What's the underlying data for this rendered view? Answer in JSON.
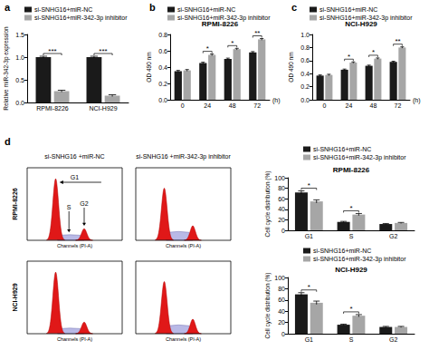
{
  "chart_data": [
    {
      "panel": "a",
      "type": "bar",
      "categories": [
        "RPMI-8226",
        "NCI-H929"
      ],
      "ylabel": "Relative miR-342-3p expression",
      "ylim": [
        0,
        1.5
      ],
      "yticks": [
        {
          "value": 0,
          "label": "0.0"
        },
        {
          "value": 0.5,
          "label": "0.5"
        },
        {
          "value": 1,
          "label": "1.0"
        },
        {
          "value": 1.5,
          "label": "1.5"
        }
      ],
      "series": [
        {
          "name": "si-SNHG16+miR-NC",
          "color": "#1a1a1a",
          "values": [
            1.0,
            1.0
          ],
          "errors": [
            0.02,
            0.02
          ]
        },
        {
          "name": "si-SNHG16+miR-342-3p inhibitor",
          "color": "#a6a6a6",
          "values": [
            0.25,
            0.15
          ],
          "errors": [
            0.02,
            0.02
          ]
        }
      ],
      "significance": [
        "***",
        "***"
      ],
      "legend": "top",
      "grid": false
    },
    {
      "panel": "b",
      "type": "bar",
      "title": "RPMI-8226",
      "categories": [
        "0",
        "24",
        "48",
        "72"
      ],
      "xlabel": "(h)",
      "ylabel": "OD 490 nm",
      "ylim": [
        0,
        0.8
      ],
      "yticks": [
        {
          "value": 0,
          "label": "0.0"
        },
        {
          "value": 0.2,
          "label": "0.2"
        },
        {
          "value": 0.4,
          "label": "0.4"
        },
        {
          "value": 0.6,
          "label": "0.6"
        },
        {
          "value": 0.8,
          "label": "0.8"
        }
      ],
      "series": [
        {
          "name": "si-SNHG16+miR-NC",
          "color": "#1a1a1a",
          "values": [
            0.35,
            0.45,
            0.5,
            0.58
          ],
          "errors": [
            0.01,
            0.01,
            0.01,
            0.01
          ]
        },
        {
          "name": "si-SNHG16+miR-342-3p inhibitor",
          "color": "#a6a6a6",
          "values": [
            0.36,
            0.55,
            0.62,
            0.74
          ],
          "errors": [
            0.01,
            0.01,
            0.01,
            0.01
          ]
        }
      ],
      "significance": [
        null,
        "*",
        "*",
        "**"
      ],
      "legend": "top",
      "grid": false
    },
    {
      "panel": "c",
      "type": "bar",
      "title": "NCI-H929",
      "categories": [
        "0",
        "24",
        "48",
        "72"
      ],
      "xlabel": "(h)",
      "ylabel": "OD 490 nm",
      "ylim": [
        0,
        1.0
      ],
      "yticks": [
        {
          "value": 0,
          "label": "0.0"
        },
        {
          "value": 0.2,
          "label": "0.2"
        },
        {
          "value": 0.4,
          "label": "0.4"
        },
        {
          "value": 0.6,
          "label": "0.6"
        },
        {
          "value": 0.8,
          "label": "0.8"
        },
        {
          "value": 1.0,
          "label": "1.0"
        }
      ],
      "series": [
        {
          "name": "si-SNHG16+miR-NC",
          "color": "#1a1a1a",
          "values": [
            0.37,
            0.46,
            0.52,
            0.58
          ],
          "errors": [
            0.01,
            0.01,
            0.01,
            0.01
          ]
        },
        {
          "name": "si-SNHG16+miR-342-3p inhibitor",
          "color": "#a6a6a6",
          "values": [
            0.38,
            0.57,
            0.63,
            0.8
          ],
          "errors": [
            0.01,
            0.01,
            0.01,
            0.01
          ]
        }
      ],
      "significance": [
        null,
        "*",
        "*",
        "**"
      ],
      "legend": "top",
      "grid": false
    },
    {
      "type": "bar",
      "title": "RPMI-8226",
      "categories": [
        "G1",
        "S",
        "G2"
      ],
      "ylabel": "Cell cycle distribution (%)",
      "ylim": [
        0,
        100
      ],
      "yticks": [
        0,
        20,
        40,
        60,
        80,
        100
      ],
      "series": [
        {
          "name": "si-SNHG16+miR-NC",
          "color": "#1a1a1a",
          "values": [
            72,
            16,
            12
          ],
          "errors": [
            3,
            1,
            1
          ]
        },
        {
          "name": "si-SNHG16+miR-342-3p inhibitor",
          "color": "#a6a6a6",
          "values": [
            55,
            30,
            14
          ],
          "errors": [
            3,
            2,
            1
          ]
        }
      ],
      "significance": [
        "*",
        "*",
        null
      ],
      "legend": "top",
      "grid": false
    },
    {
      "type": "bar",
      "title": "NCI-H929",
      "categories": [
        "G1",
        "S",
        "G2"
      ],
      "ylabel": "Cell cycle distribution (%)",
      "ylim": [
        0,
        100
      ],
      "yticks": [
        0,
        20,
        40,
        60,
        80,
        100
      ],
      "series": [
        {
          "name": "si-SNHG16+miR-NC",
          "color": "#1a1a1a",
          "values": [
            70,
            16,
            12
          ],
          "errors": [
            3,
            1,
            1
          ]
        },
        {
          "name": "si-SNHG16+miR-342-3p inhibitor",
          "color": "#a6a6a6",
          "values": [
            55,
            32,
            12
          ],
          "errors": [
            3,
            2,
            1
          ]
        }
      ],
      "significance": [
        "*",
        "*",
        null
      ],
      "legend": "top",
      "grid": false
    }
  ],
  "flow_cytometry": {
    "panel": "d",
    "columns": [
      "si-SNHG16 +miR-NC",
      "si-SNHG16 +miR-342-3p inhibitor"
    ],
    "rows": [
      "RPMI-8226",
      "NCI-H929"
    ],
    "phase_labels": [
      "G1",
      "S",
      "G2"
    ],
    "x_axis_label": "Channels (PI-A)"
  }
}
